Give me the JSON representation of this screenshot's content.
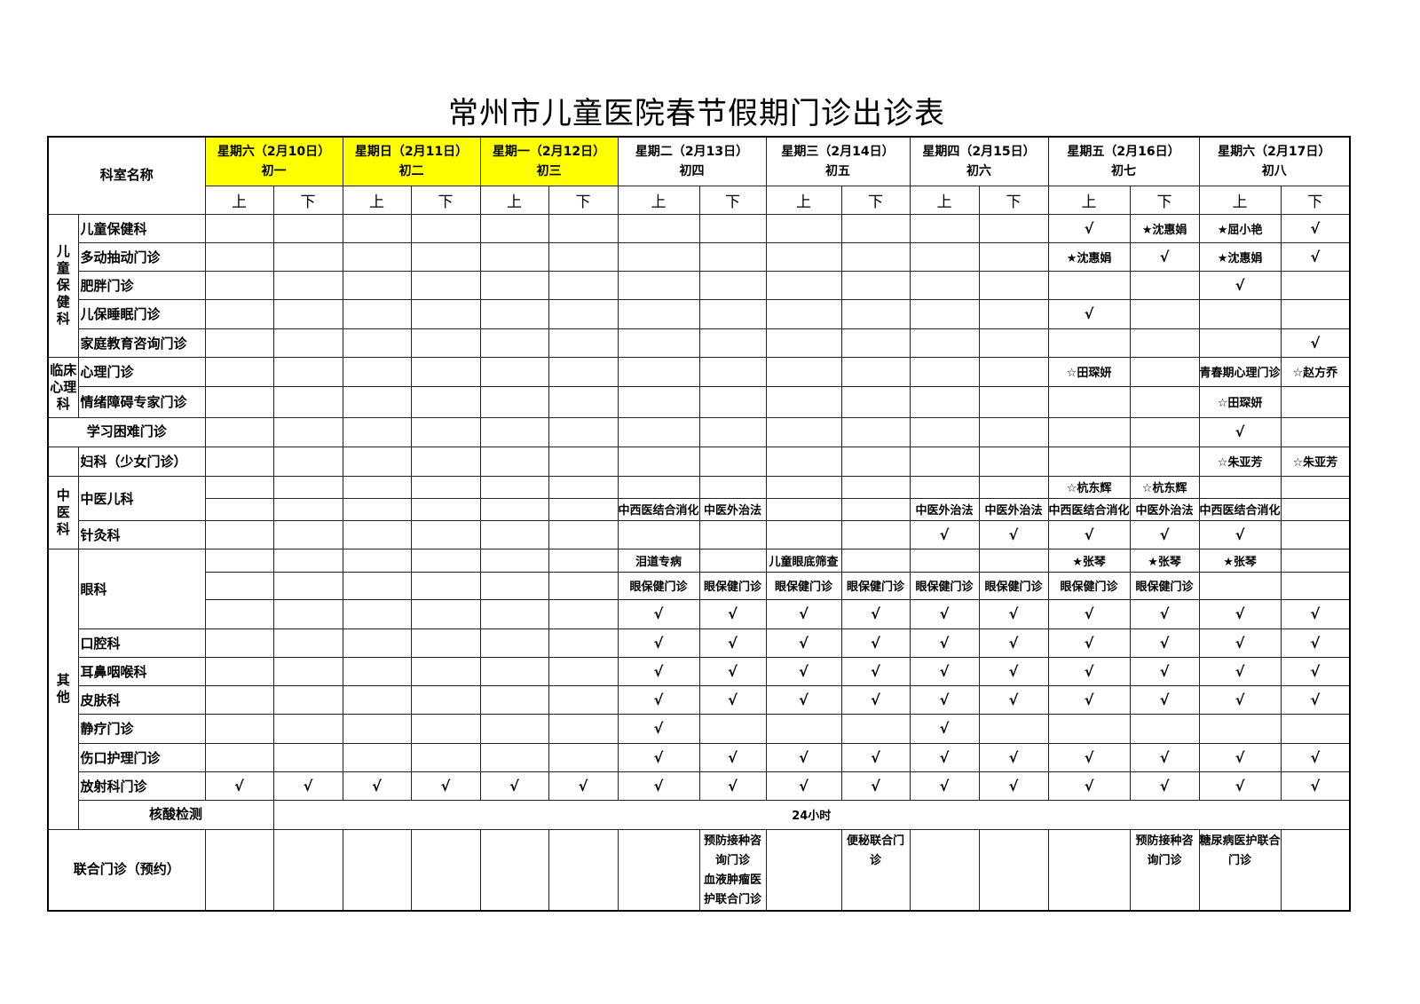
{
  "title": "常州市儿童医院春节假期门诊出诊表",
  "header": {
    "dept_label": "科室名称",
    "am": "上",
    "pm": "下",
    "days": [
      {
        "label": "星期六（2月10日）",
        "lunar": "初一",
        "holiday": true
      },
      {
        "label": "星期日（2月11日）",
        "lunar": "初二",
        "holiday": true
      },
      {
        "label": "星期一（2月12日）",
        "lunar": "初三",
        "holiday": true
      },
      {
        "label": "星期二（2月13日）",
        "lunar": "初四",
        "holiday": false
      },
      {
        "label": "星期三（2月14日）",
        "lunar": "初五",
        "holiday": false
      },
      {
        "label": "星期四（2月15日）",
        "lunar": "初六",
        "holiday": false
      },
      {
        "label": "星期五（2月16日）",
        "lunar": "初七",
        "holiday": false
      },
      {
        "label": "星期六（2月17日）",
        "lunar": "初八",
        "holiday": false
      }
    ],
    "highlight_color": "#ffff00"
  },
  "rows": [
    {
      "group": "儿\n童\n保\n健\n科",
      "groupSpan": 5,
      "name": "儿童保健科",
      "cells": [
        "",
        "",
        "",
        "",
        "",
        "",
        "",
        "",
        "",
        "",
        "",
        "",
        "√",
        "★沈惠娟",
        "★屈小艳",
        "√"
      ]
    },
    {
      "name": "多动抽动门诊",
      "cells": [
        "",
        "",
        "",
        "",
        "",
        "",
        "",
        "",
        "",
        "",
        "",
        "",
        "★沈惠娟",
        "√",
        "★沈惠娟",
        "√"
      ]
    },
    {
      "name": "肥胖门诊",
      "cells": [
        "",
        "",
        "",
        "",
        "",
        "",
        "",
        "",
        "",
        "",
        "",
        "",
        "",
        "",
        "√",
        ""
      ]
    },
    {
      "name": "儿保睡眠门诊",
      "cells": [
        "",
        "",
        "",
        "",
        "",
        "",
        "",
        "",
        "",
        "",
        "",
        "",
        "√",
        "",
        "",
        ""
      ]
    },
    {
      "name": "家庭教育咨询门诊",
      "cells": [
        "",
        "",
        "",
        "",
        "",
        "",
        "",
        "",
        "",
        "",
        "",
        "",
        "",
        "",
        "",
        "√"
      ]
    },
    {
      "group": "临床\n心理\n科",
      "groupSpan": 2,
      "name": "心理门诊",
      "cells": [
        "",
        "",
        "",
        "",
        "",
        "",
        "",
        "",
        "",
        "",
        "",
        "",
        "☆田琛妍",
        "",
        "青春期心理门诊",
        "☆赵方乔"
      ]
    },
    {
      "name": "情绪障碍专家门诊",
      "cells": [
        "",
        "",
        "",
        "",
        "",
        "",
        "",
        "",
        "",
        "",
        "",
        "",
        "",
        "",
        "☆田琛妍",
        ""
      ]
    },
    {
      "fullName": "学习困难门诊",
      "cells": [
        "",
        "",
        "",
        "",
        "",
        "",
        "",
        "",
        "",
        "",
        "",
        "",
        "",
        "",
        "√",
        ""
      ]
    },
    {
      "group": "",
      "groupSpan": 1,
      "name": "妇科（少女门诊）",
      "cells": [
        "",
        "",
        "",
        "",
        "",
        "",
        "",
        "",
        "",
        "",
        "",
        "",
        "",
        "",
        "☆朱亚芳",
        "☆朱亚芳"
      ]
    },
    {
      "group": "中\n医\n科",
      "groupSpan": 3,
      "name": "中医儿科",
      "nameSpan": 2,
      "cells": [
        "",
        "",
        "",
        "",
        "",
        "",
        "",
        "",
        "",
        "",
        "",
        "",
        "☆杭东辉",
        "☆杭东辉",
        "",
        ""
      ]
    },
    {
      "cells": [
        "",
        "",
        "",
        "",
        "",
        "",
        "中西医结合消化",
        "中医外治法",
        "",
        "",
        "中医外治法",
        "中医外治法",
        "中西医结合消化",
        "中医外治法",
        "中西医结合消化",
        ""
      ]
    },
    {
      "name": "针灸科",
      "cells": [
        "",
        "",
        "",
        "",
        "",
        "",
        "",
        "",
        "",
        "",
        "√",
        "√",
        "√",
        "√",
        "√",
        ""
      ]
    },
    {
      "group": "其\n他",
      "groupSpan": 10,
      "name": "眼科",
      "nameSpan": 3,
      "cells": [
        "",
        "",
        "",
        "",
        "",
        "",
        "泪道专病",
        "",
        "儿童眼底筛查",
        "",
        "",
        "",
        "★张琴",
        "★张琴",
        "★张琴",
        ""
      ]
    },
    {
      "cells": [
        "",
        "",
        "",
        "",
        "",
        "",
        "眼保健门诊",
        "眼保健门诊",
        "眼保健门诊",
        "眼保健门诊",
        "眼保健门诊",
        "眼保健门诊",
        "眼保健门诊",
        "眼保健门诊",
        "",
        ""
      ]
    },
    {
      "cells": [
        "",
        "",
        "",
        "",
        "",
        "",
        "√",
        "√",
        "√",
        "√",
        "√",
        "√",
        "√",
        "√",
        "√",
        "√"
      ]
    },
    {
      "name": "口腔科",
      "cells": [
        "",
        "",
        "",
        "",
        "",
        "",
        "√",
        "√",
        "√",
        "√",
        "√",
        "√",
        "√",
        "√",
        "√",
        "√"
      ]
    },
    {
      "name": "耳鼻咽喉科",
      "cells": [
        "",
        "",
        "",
        "",
        "",
        "",
        "√",
        "√",
        "√",
        "√",
        "√",
        "√",
        "√",
        "√",
        "√",
        "√"
      ]
    },
    {
      "name": "皮肤科",
      "cells": [
        "",
        "",
        "",
        "",
        "",
        "",
        "√",
        "√",
        "√",
        "√",
        "√",
        "√",
        "√",
        "√",
        "√",
        "√"
      ]
    },
    {
      "name": "静疗门诊",
      "cells": [
        "",
        "",
        "",
        "",
        "",
        "",
        "√",
        "",
        "",
        "",
        "√",
        "",
        "",
        "",
        "",
        ""
      ]
    },
    {
      "name": "伤口护理门诊",
      "cells": [
        "",
        "",
        "",
        "",
        "",
        "",
        "√",
        "√",
        "√",
        "√",
        "√",
        "√",
        "√",
        "√",
        "√",
        "√"
      ]
    },
    {
      "name": "放射科门诊",
      "cells": [
        "√",
        "√",
        "√",
        "√",
        "√",
        "√",
        "√",
        "√",
        "√",
        "√",
        "√",
        "√",
        "√",
        "√",
        "√",
        "√"
      ]
    }
  ],
  "nucleic": {
    "name": "核酸检测",
    "value": "24小时"
  },
  "joint": {
    "name": "联合门诊（预约）",
    "cells": [
      "",
      "",
      "",
      "",
      "",
      "",
      "",
      "预防接种咨\n询门诊\n血液肿瘤医\n护联合门诊",
      "",
      "便秘联合门\n诊",
      "",
      "",
      "",
      "预防接种咨\n询门诊",
      "糖尿病医护联合\n门诊",
      ""
    ]
  }
}
